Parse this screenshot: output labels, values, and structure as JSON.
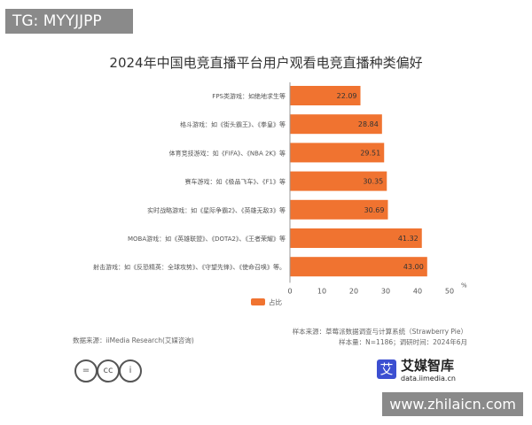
{
  "watermarks": {
    "top": "TG: MYYJJPP",
    "bottom": "www.zhilaicn.com"
  },
  "chart_data": {
    "type": "bar",
    "orientation": "horizontal",
    "title": "2024年中国电竞直播平台用户观看电竞直播种类偏好",
    "categories": [
      "FPS类游戏：如绝地求生等",
      "格斗游戏：如《街头霸王》、《拳皇》等",
      "体育竞技游戏：如《FIFA》、《NBA 2K》等",
      "赛车游戏：如《极品飞车》、《F1》等",
      "实时战略游戏：如《星际争霸2》、《英雄无敌3》等",
      "MOBA游戏：如《英雄联盟》、《DOTA2》、《王者荣耀》等",
      "射击游戏：如《反恐精英：全球攻势》、《守望先锋》、《使命召唤》等。"
    ],
    "series": [
      {
        "name": "占比",
        "values": [
          22.09,
          28.84,
          29.51,
          30.35,
          30.69,
          41.32,
          43.0
        ],
        "color": "#f07330"
      }
    ],
    "value_labels": [
      "22.09",
      "28.84",
      "29.51",
      "30.35",
      "30.69",
      "41.32",
      "43.00"
    ],
    "xlim": [
      0,
      50
    ],
    "xticks": [
      "0",
      "10",
      "20",
      "30",
      "40",
      "50"
    ],
    "xunit": "%",
    "grid": false,
    "legend": "bottom"
  },
  "footer": {
    "data_source": "数据来源：iiMedia Research(艾媒咨询)",
    "sample_source": "样本来源：草莓派数据调查与计算系统（Strawberry Pie）",
    "sample_size": "样本量：N=1186；调研时间：2024年6月"
  },
  "logo": {
    "mark": "艾",
    "name": "艾媒智库",
    "url": "data.iimedia.cn"
  },
  "license_icons": [
    "=",
    "cc",
    "i"
  ]
}
